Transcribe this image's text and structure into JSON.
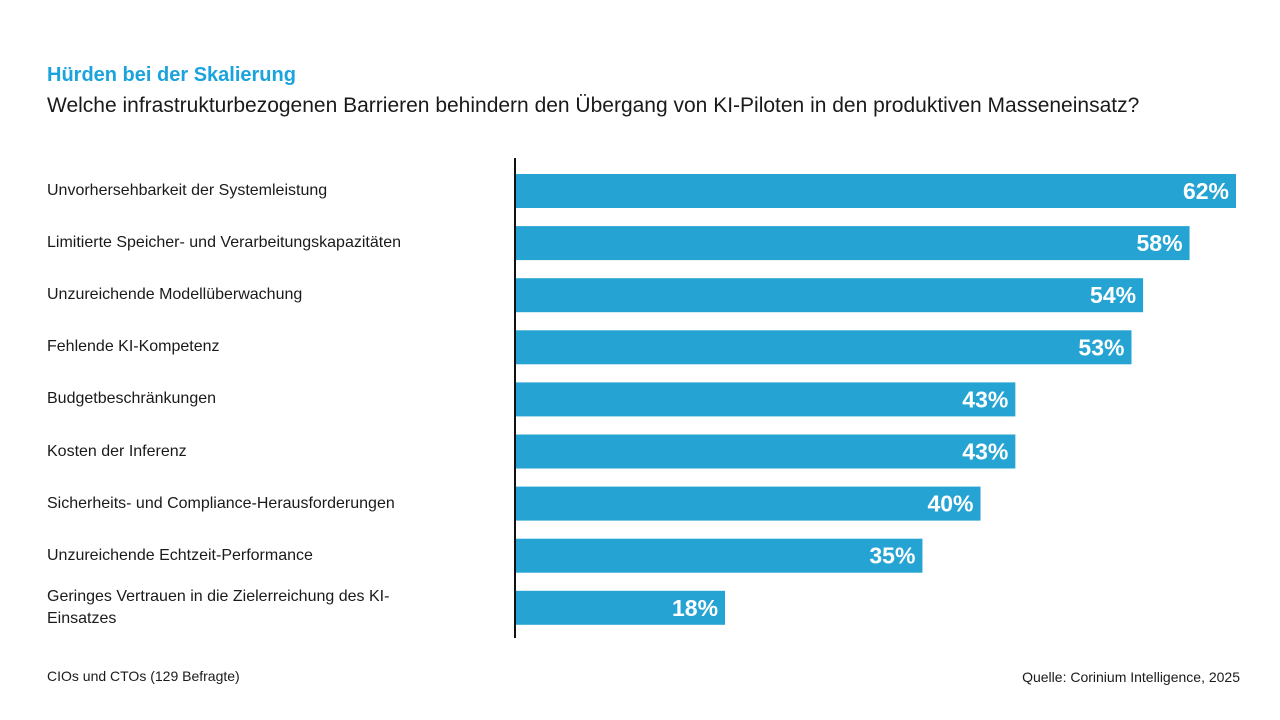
{
  "header": {
    "kicker": "Hürden bei der Skalierung",
    "question": "Welche infrastrukturbezogenen Barrieren behindern den Übergang von KI-Piloten in den produktiven Masseneinsatz?"
  },
  "footer": {
    "sample": "CIOs und CTOs (129 Befragte)",
    "source": "Quelle: Corinium Intelligence, 2025"
  },
  "colors": {
    "kicker": "#1aa3dc",
    "bar": "#25a4d3",
    "bar_label": "#ffffff",
    "axis": "#111111"
  },
  "chart_data": {
    "type": "bar",
    "orientation": "horizontal",
    "title": "Hürden bei der Skalierung",
    "subtitle": "Welche infrastrukturbezogenen Barrieren behindern den Übergang von KI-Piloten in den produktiven Masseneinsatz?",
    "xlabel": "",
    "ylabel": "",
    "unit": "%",
    "xlim": [
      0,
      62
    ],
    "grid": false,
    "legend": "none",
    "categories": [
      "Unvorhersehbarkeit der Systemleistung",
      "Limitierte Speicher- und Verarbeitungskapazitäten",
      "Unzureichende Modellüberwachung",
      "Fehlende KI-Kompetenz",
      "Budgetbeschränkungen",
      "Kosten der Inferenz",
      "Sicherheits- und Compliance-Herausforderungen",
      "Unzureichende Echtzeit-Performance",
      "Geringes Vertrauen in die Zielerreichung des KI-Einsatzes"
    ],
    "values": [
      62,
      58,
      54,
      53,
      43,
      43,
      40,
      35,
      18
    ],
    "data_labels": [
      "62%",
      "58%",
      "54%",
      "53%",
      "43%",
      "43%",
      "40%",
      "35%",
      "18%"
    ]
  }
}
